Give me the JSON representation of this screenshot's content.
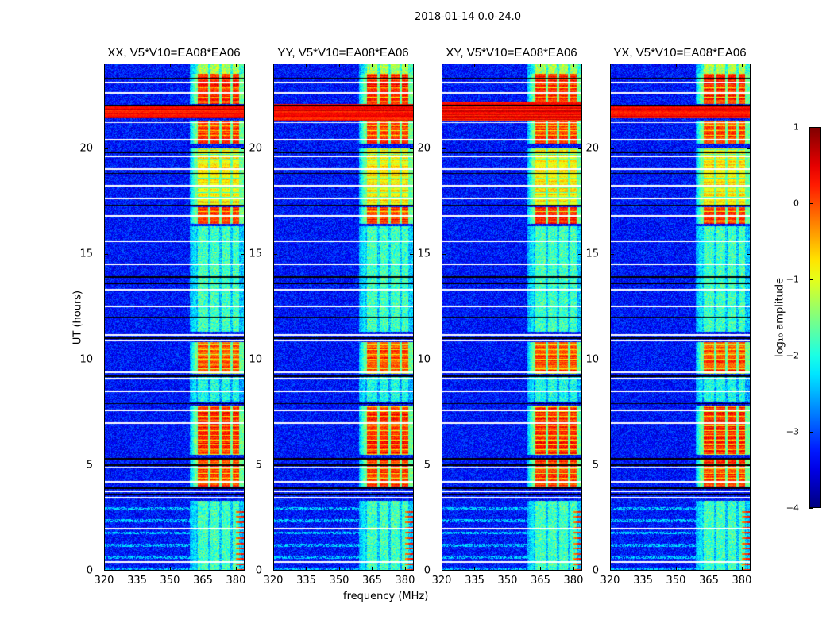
{
  "suptitle": "2018-01-14 0.0-24.0",
  "chart_data": {
    "type": "heatmap",
    "title": "2018-01-14 0.0-24.0",
    "xlabel": "frequency (MHz)",
    "ylabel": "UT (hours)",
    "xlim": [
      320,
      384
    ],
    "ylim": [
      0,
      24
    ],
    "xticks": [
      320,
      335,
      350,
      365,
      380
    ],
    "yticks": [
      0,
      5,
      10,
      15,
      20
    ],
    "panels": [
      {
        "title": "XX, V5*V10=EA08*EA06",
        "broadband_rfi_ut": [
          [
            21.4,
            22.0
          ]
        ],
        "edge_rfi": true
      },
      {
        "title": "YY, V5*V10=EA08*EA06",
        "broadband_rfi_ut": [
          [
            21.3,
            22.1
          ]
        ],
        "edge_rfi": true
      },
      {
        "title": "XY, V5*V10=EA08*EA06",
        "broadband_rfi_ut": [
          [
            21.3,
            22.2
          ]
        ],
        "edge_rfi": true
      },
      {
        "title": "YX, V5*V10=EA08*EA06",
        "broadband_rfi_ut": [
          [
            21.4,
            22.0
          ]
        ],
        "edge_rfi": true
      }
    ],
    "background_log_amplitude": -3.3,
    "rfi_band_mhz": [
      362,
      381
    ],
    "rfi_subbands_mhz": [
      [
        362.5,
        367.5
      ],
      [
        368.5,
        372.5
      ],
      [
        373.5,
        377.5
      ],
      [
        378.5,
        381.5
      ]
    ],
    "rfi_time_segments": [
      {
        "ut": [
          0.0,
          3.3
        ],
        "log_amplitude": -2.0
      },
      {
        "ut": [
          4.0,
          5.3
        ],
        "log_amplitude": 0.1
      },
      {
        "ut": [
          5.5,
          7.8
        ],
        "log_amplitude": 0.2
      },
      {
        "ut": [
          8.0,
          9.2
        ],
        "log_amplitude": -2.2
      },
      {
        "ut": [
          9.3,
          10.8
        ],
        "log_amplitude": 0.0
      },
      {
        "ut": [
          11.3,
          16.3
        ],
        "log_amplitude": -2.0
      },
      {
        "ut": [
          16.4,
          17.2
        ],
        "log_amplitude": 0.1
      },
      {
        "ut": [
          17.3,
          20.0
        ],
        "log_amplitude": -0.8
      },
      {
        "ut": [
          20.2,
          21.3
        ],
        "log_amplitude": 0.1
      },
      {
        "ut": [
          22.1,
          23.5
        ],
        "log_amplitude": 0.2
      },
      {
        "ut": [
          23.5,
          24.0
        ],
        "log_amplitude": -1.5
      }
    ],
    "flagged_rows_ut": [
      0.4,
      2.0,
      3.45,
      3.75,
      4.2,
      4.9,
      7.0,
      7.6,
      8.5,
      9.1,
      9.4,
      10.9,
      11.15,
      12.5,
      13.3,
      14.5,
      15.6,
      16.8,
      17.6,
      18.2,
      19.0,
      19.6,
      20.4,
      21.2,
      22.6,
      23.1
    ],
    "dark_rows_ut": [
      3.6,
      3.9,
      5.0,
      5.3,
      7.9,
      9.2,
      11.0,
      12.0,
      13.6,
      13.9,
      17.3,
      18.8,
      19.8,
      22.0,
      23.3
    ],
    "colorbar": {
      "label": "log₁₀ amplitude",
      "colormap": "jet",
      "range": [
        -4,
        1
      ],
      "ticks": [
        1,
        0,
        -1,
        -2,
        -3,
        -4
      ],
      "tick_labels": [
        "1",
        "0",
        "−1",
        "−2",
        "−3",
        "−4"
      ]
    }
  }
}
